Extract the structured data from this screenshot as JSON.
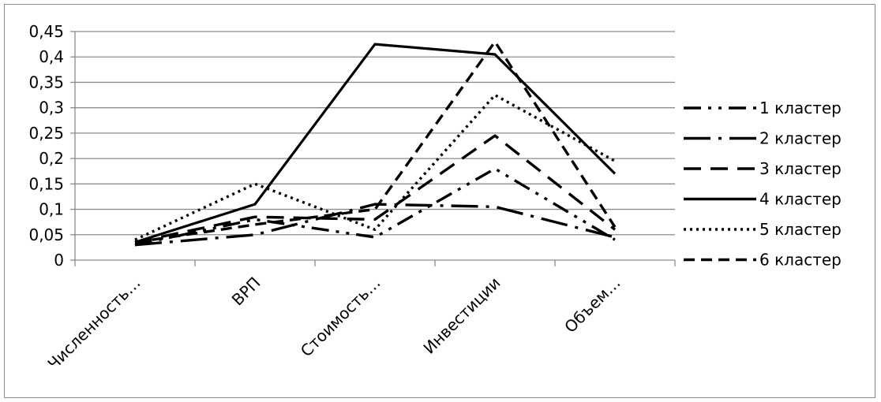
{
  "chart_data": {
    "type": "line",
    "categories": [
      "Численность…",
      "ВРП",
      "Стоимость…",
      "Инвестиции",
      "Объем…"
    ],
    "ylim": [
      0,
      0.45
    ],
    "yticks": [
      "0",
      "0,05",
      "0,1",
      "0,15",
      "0,2",
      "0,25",
      "0,3",
      "0,35",
      "0,4",
      "0,45"
    ],
    "ytick_values": [
      0,
      0.05,
      0.1,
      0.15,
      0.2,
      0.25,
      0.3,
      0.35,
      0.4,
      0.45
    ],
    "grid": true,
    "legend_position": "right",
    "series": [
      {
        "name": "1 кластер",
        "dash": "dash-dot-dot",
        "values": [
          0.03,
          0.08,
          0.045,
          0.18,
          0.04
        ]
      },
      {
        "name": "2 кластер",
        "dash": "long-dash-dot",
        "values": [
          0.03,
          0.05,
          0.11,
          0.105,
          0.045
        ]
      },
      {
        "name": "3 кластер",
        "dash": "dash",
        "values": [
          0.035,
          0.085,
          0.08,
          0.245,
          0.06
        ]
      },
      {
        "name": "4 кластер",
        "dash": "solid",
        "values": [
          0.035,
          0.11,
          0.425,
          0.405,
          0.17
        ]
      },
      {
        "name": "5 кластер",
        "dash": "dot",
        "values": [
          0.04,
          0.15,
          0.06,
          0.325,
          0.195
        ]
      },
      {
        "name": "6 кластер",
        "dash": "short-dash",
        "values": [
          0.035,
          0.07,
          0.1,
          0.43,
          0.065
        ]
      }
    ],
    "colors": {
      "line": "#000000",
      "grid": "#8c8c8c",
      "border": "#8c8c8c"
    }
  }
}
